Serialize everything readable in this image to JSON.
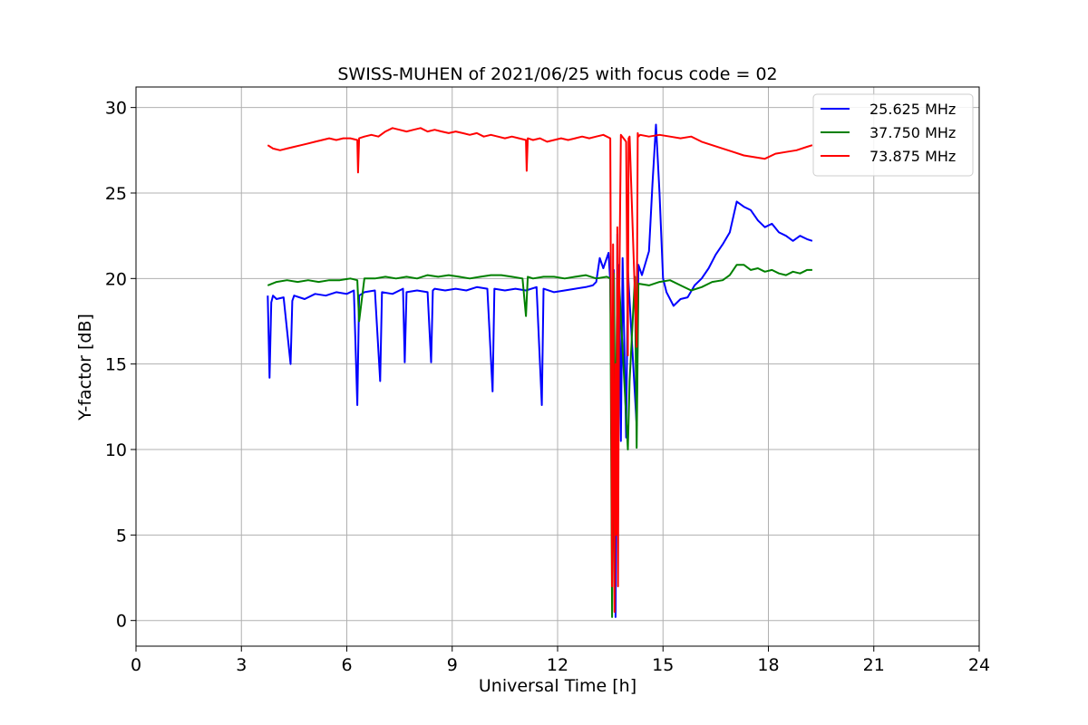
{
  "chart_data": {
    "type": "line",
    "title": "SWISS-MUHEN of 2021/06/25 with focus code = 02",
    "xlabel": "Universal Time [h]",
    "ylabel": "Y-factor [dB]",
    "xlim": [
      0,
      24
    ],
    "ylim": [
      -1.5,
      31.2
    ],
    "xticks": [
      0,
      3,
      6,
      9,
      12,
      15,
      18,
      21,
      24
    ],
    "yticks": [
      0,
      5,
      10,
      15,
      20,
      25,
      30
    ],
    "grid": true,
    "legend_position": "top-right",
    "series": [
      {
        "name": "25.625 MHz",
        "color": "#0000ff",
        "x": [
          3.75,
          3.8,
          3.85,
          3.9,
          4.0,
          4.2,
          4.4,
          4.45,
          4.5,
          4.8,
          5.1,
          5.4,
          5.7,
          6.0,
          6.2,
          6.3,
          6.35,
          6.5,
          6.8,
          6.95,
          7.0,
          7.3,
          7.6,
          7.65,
          7.7,
          8.0,
          8.3,
          8.4,
          8.45,
          8.5,
          8.8,
          9.1,
          9.4,
          9.7,
          10.0,
          10.15,
          10.2,
          10.5,
          10.8,
          11.1,
          11.4,
          11.55,
          11.6,
          11.9,
          12.2,
          12.5,
          12.8,
          13.0,
          13.1,
          13.2,
          13.3,
          13.45,
          13.5,
          13.55,
          13.6,
          13.65,
          13.7,
          13.72,
          13.75,
          13.8,
          13.85,
          13.95,
          14.0,
          14.25,
          14.3,
          14.4,
          14.6,
          14.7,
          14.8,
          14.9,
          15.0,
          15.1,
          15.3,
          15.5,
          15.7,
          15.9,
          16.1,
          16.3,
          16.5,
          16.7,
          16.9,
          17.1,
          17.3,
          17.5,
          17.7,
          17.9,
          18.1,
          18.3,
          18.5,
          18.7,
          18.9,
          19.1,
          19.25
        ],
        "y": [
          19.0,
          14.2,
          18.6,
          19.0,
          18.8,
          18.9,
          15.0,
          18.7,
          19.0,
          18.8,
          19.1,
          19.0,
          19.2,
          19.1,
          19.3,
          12.6,
          19.0,
          19.2,
          19.3,
          14.0,
          19.2,
          19.1,
          19.4,
          15.1,
          19.2,
          19.3,
          19.2,
          15.1,
          19.3,
          19.4,
          19.3,
          19.4,
          19.3,
          19.5,
          19.4,
          13.4,
          19.4,
          19.3,
          19.4,
          19.3,
          19.5,
          12.6,
          19.4,
          19.2,
          19.3,
          19.4,
          19.5,
          19.6,
          19.8,
          21.2,
          20.6,
          21.5,
          19.8,
          10.3,
          20.5,
          0.2,
          22.6,
          15.0,
          20.8,
          10.5,
          21.2,
          10.7,
          20.5,
          11.4,
          20.8,
          20.2,
          21.6,
          25.5,
          29.0,
          25.0,
          20.0,
          19.2,
          18.4,
          18.8,
          18.9,
          19.6,
          20.0,
          20.6,
          21.4,
          22.0,
          22.7,
          24.5,
          24.2,
          24.0,
          23.4,
          23.0,
          23.2,
          22.7,
          22.5,
          22.2,
          22.5,
          22.3,
          22.2
        ]
      },
      {
        "name": "37.750 MHz",
        "color": "#008000",
        "x": [
          3.75,
          4.0,
          4.3,
          4.6,
          4.9,
          5.2,
          5.5,
          5.8,
          6.1,
          6.3,
          6.35,
          6.5,
          6.8,
          7.1,
          7.4,
          7.7,
          8.0,
          8.3,
          8.6,
          8.9,
          9.2,
          9.5,
          9.8,
          10.1,
          10.4,
          10.7,
          11.0,
          11.1,
          11.15,
          11.3,
          11.6,
          11.9,
          12.2,
          12.5,
          12.8,
          13.1,
          13.4,
          13.5,
          13.55,
          13.6,
          13.65,
          13.7,
          13.75,
          14.0,
          14.05,
          14.2,
          14.25,
          14.3,
          14.6,
          14.9,
          15.2,
          15.5,
          15.8,
          16.1,
          16.4,
          16.7,
          16.9,
          17.1,
          17.3,
          17.5,
          17.7,
          17.9,
          18.1,
          18.3,
          18.5,
          18.7,
          18.9,
          19.1,
          19.25
        ],
        "y": [
          19.6,
          19.8,
          19.9,
          19.8,
          19.9,
          19.8,
          19.9,
          19.9,
          20.0,
          19.9,
          17.5,
          20.0,
          20.0,
          20.1,
          20.0,
          20.1,
          20.0,
          20.2,
          20.1,
          20.2,
          20.1,
          20.0,
          20.1,
          20.2,
          20.2,
          20.1,
          20.0,
          17.8,
          20.1,
          20.0,
          20.1,
          20.1,
          20.0,
          20.1,
          20.2,
          20.0,
          20.1,
          20.0,
          0.2,
          20.3,
          9.5,
          20.0,
          19.8,
          10.0,
          14.0,
          20.1,
          10.1,
          19.7,
          19.6,
          19.8,
          19.9,
          19.6,
          19.3,
          19.5,
          19.8,
          19.9,
          20.2,
          20.8,
          20.8,
          20.5,
          20.6,
          20.4,
          20.5,
          20.3,
          20.2,
          20.4,
          20.3,
          20.5,
          20.5
        ]
      },
      {
        "name": "73.875 MHz",
        "color": "#ff0000",
        "x": [
          3.75,
          3.9,
          4.1,
          4.3,
          4.5,
          4.7,
          4.9,
          5.1,
          5.3,
          5.5,
          5.7,
          5.9,
          6.1,
          6.3,
          6.32,
          6.35,
          6.5,
          6.7,
          6.9,
          7.1,
          7.3,
          7.5,
          7.7,
          7.9,
          8.1,
          8.3,
          8.5,
          8.7,
          8.9,
          9.1,
          9.3,
          9.5,
          9.7,
          9.9,
          10.1,
          10.3,
          10.5,
          10.7,
          10.9,
          11.1,
          11.12,
          11.15,
          11.3,
          11.5,
          11.7,
          11.9,
          12.1,
          12.3,
          12.5,
          12.7,
          12.9,
          13.1,
          13.3,
          13.5,
          13.52,
          13.55,
          13.58,
          13.62,
          13.65,
          13.68,
          13.7,
          13.72,
          13.75,
          13.8,
          13.95,
          14.0,
          14.02,
          14.05,
          14.25,
          14.28,
          14.3,
          14.35,
          14.6,
          14.9,
          15.2,
          15.5,
          15.8,
          16.1,
          16.4,
          16.7,
          17.0,
          17.3,
          17.6,
          17.9,
          18.2,
          18.5,
          18.8,
          19.1,
          19.25
        ],
        "y": [
          27.8,
          27.6,
          27.5,
          27.6,
          27.7,
          27.8,
          27.9,
          28.0,
          28.1,
          28.2,
          28.1,
          28.2,
          28.2,
          28.1,
          26.2,
          28.2,
          28.3,
          28.4,
          28.3,
          28.6,
          28.8,
          28.7,
          28.6,
          28.7,
          28.8,
          28.6,
          28.7,
          28.6,
          28.5,
          28.6,
          28.5,
          28.4,
          28.5,
          28.3,
          28.4,
          28.3,
          28.2,
          28.3,
          28.2,
          28.1,
          26.3,
          28.2,
          28.1,
          28.2,
          28.0,
          28.1,
          28.2,
          28.1,
          28.2,
          28.3,
          28.2,
          28.3,
          28.4,
          28.2,
          18.0,
          2.0,
          22.0,
          0.5,
          15.0,
          5.0,
          23.0,
          2.0,
          18.2,
          28.4,
          28.0,
          15.5,
          28.2,
          28.3,
          16.0,
          28.5,
          28.3,
          28.4,
          28.3,
          28.4,
          28.3,
          28.2,
          28.3,
          28.0,
          27.8,
          27.6,
          27.4,
          27.2,
          27.1,
          27.0,
          27.3,
          27.4,
          27.5,
          27.7,
          27.8
        ]
      }
    ]
  }
}
